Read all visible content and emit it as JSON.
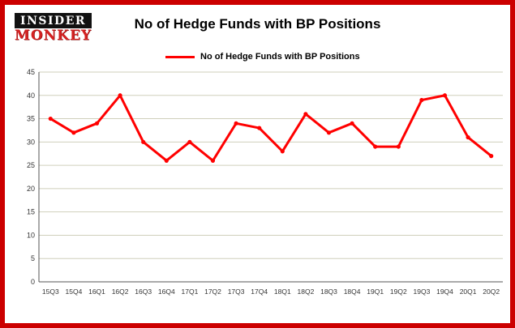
{
  "brand": {
    "line1": "INSIDER",
    "line2": "MONKEY"
  },
  "header": {
    "title": "No of Hedge Funds with BP Positions"
  },
  "legend": {
    "label": "No of Hedge Funds with BP Positions"
  },
  "colors": {
    "accent": "#ff0000",
    "border": "#cc0000",
    "grid": "#cfcfbb",
    "axis": "#555555",
    "tick_text": "#333333"
  },
  "chart_data": {
    "type": "line",
    "title": "No of Hedge Funds with BP Positions",
    "categories": [
      "15Q3",
      "15Q4",
      "16Q1",
      "16Q2",
      "16Q3",
      "16Q4",
      "17Q1",
      "17Q2",
      "17Q3",
      "17Q4",
      "18Q1",
      "18Q2",
      "18Q3",
      "18Q4",
      "19Q1",
      "19Q2",
      "19Q3",
      "19Q4",
      "20Q1",
      "20Q2"
    ],
    "series": [
      {
        "name": "No of Hedge Funds with BP Positions",
        "color": "#ff0000",
        "values": [
          35,
          32,
          34,
          40,
          30,
          26,
          30,
          26,
          34,
          33,
          28,
          36,
          32,
          34,
          29,
          29,
          39,
          40,
          31,
          27
        ]
      }
    ],
    "xlabel": "",
    "ylabel": "",
    "ylim": [
      0,
      45
    ],
    "ytick_step": 5,
    "grid": true,
    "legend_position": "top-left"
  }
}
